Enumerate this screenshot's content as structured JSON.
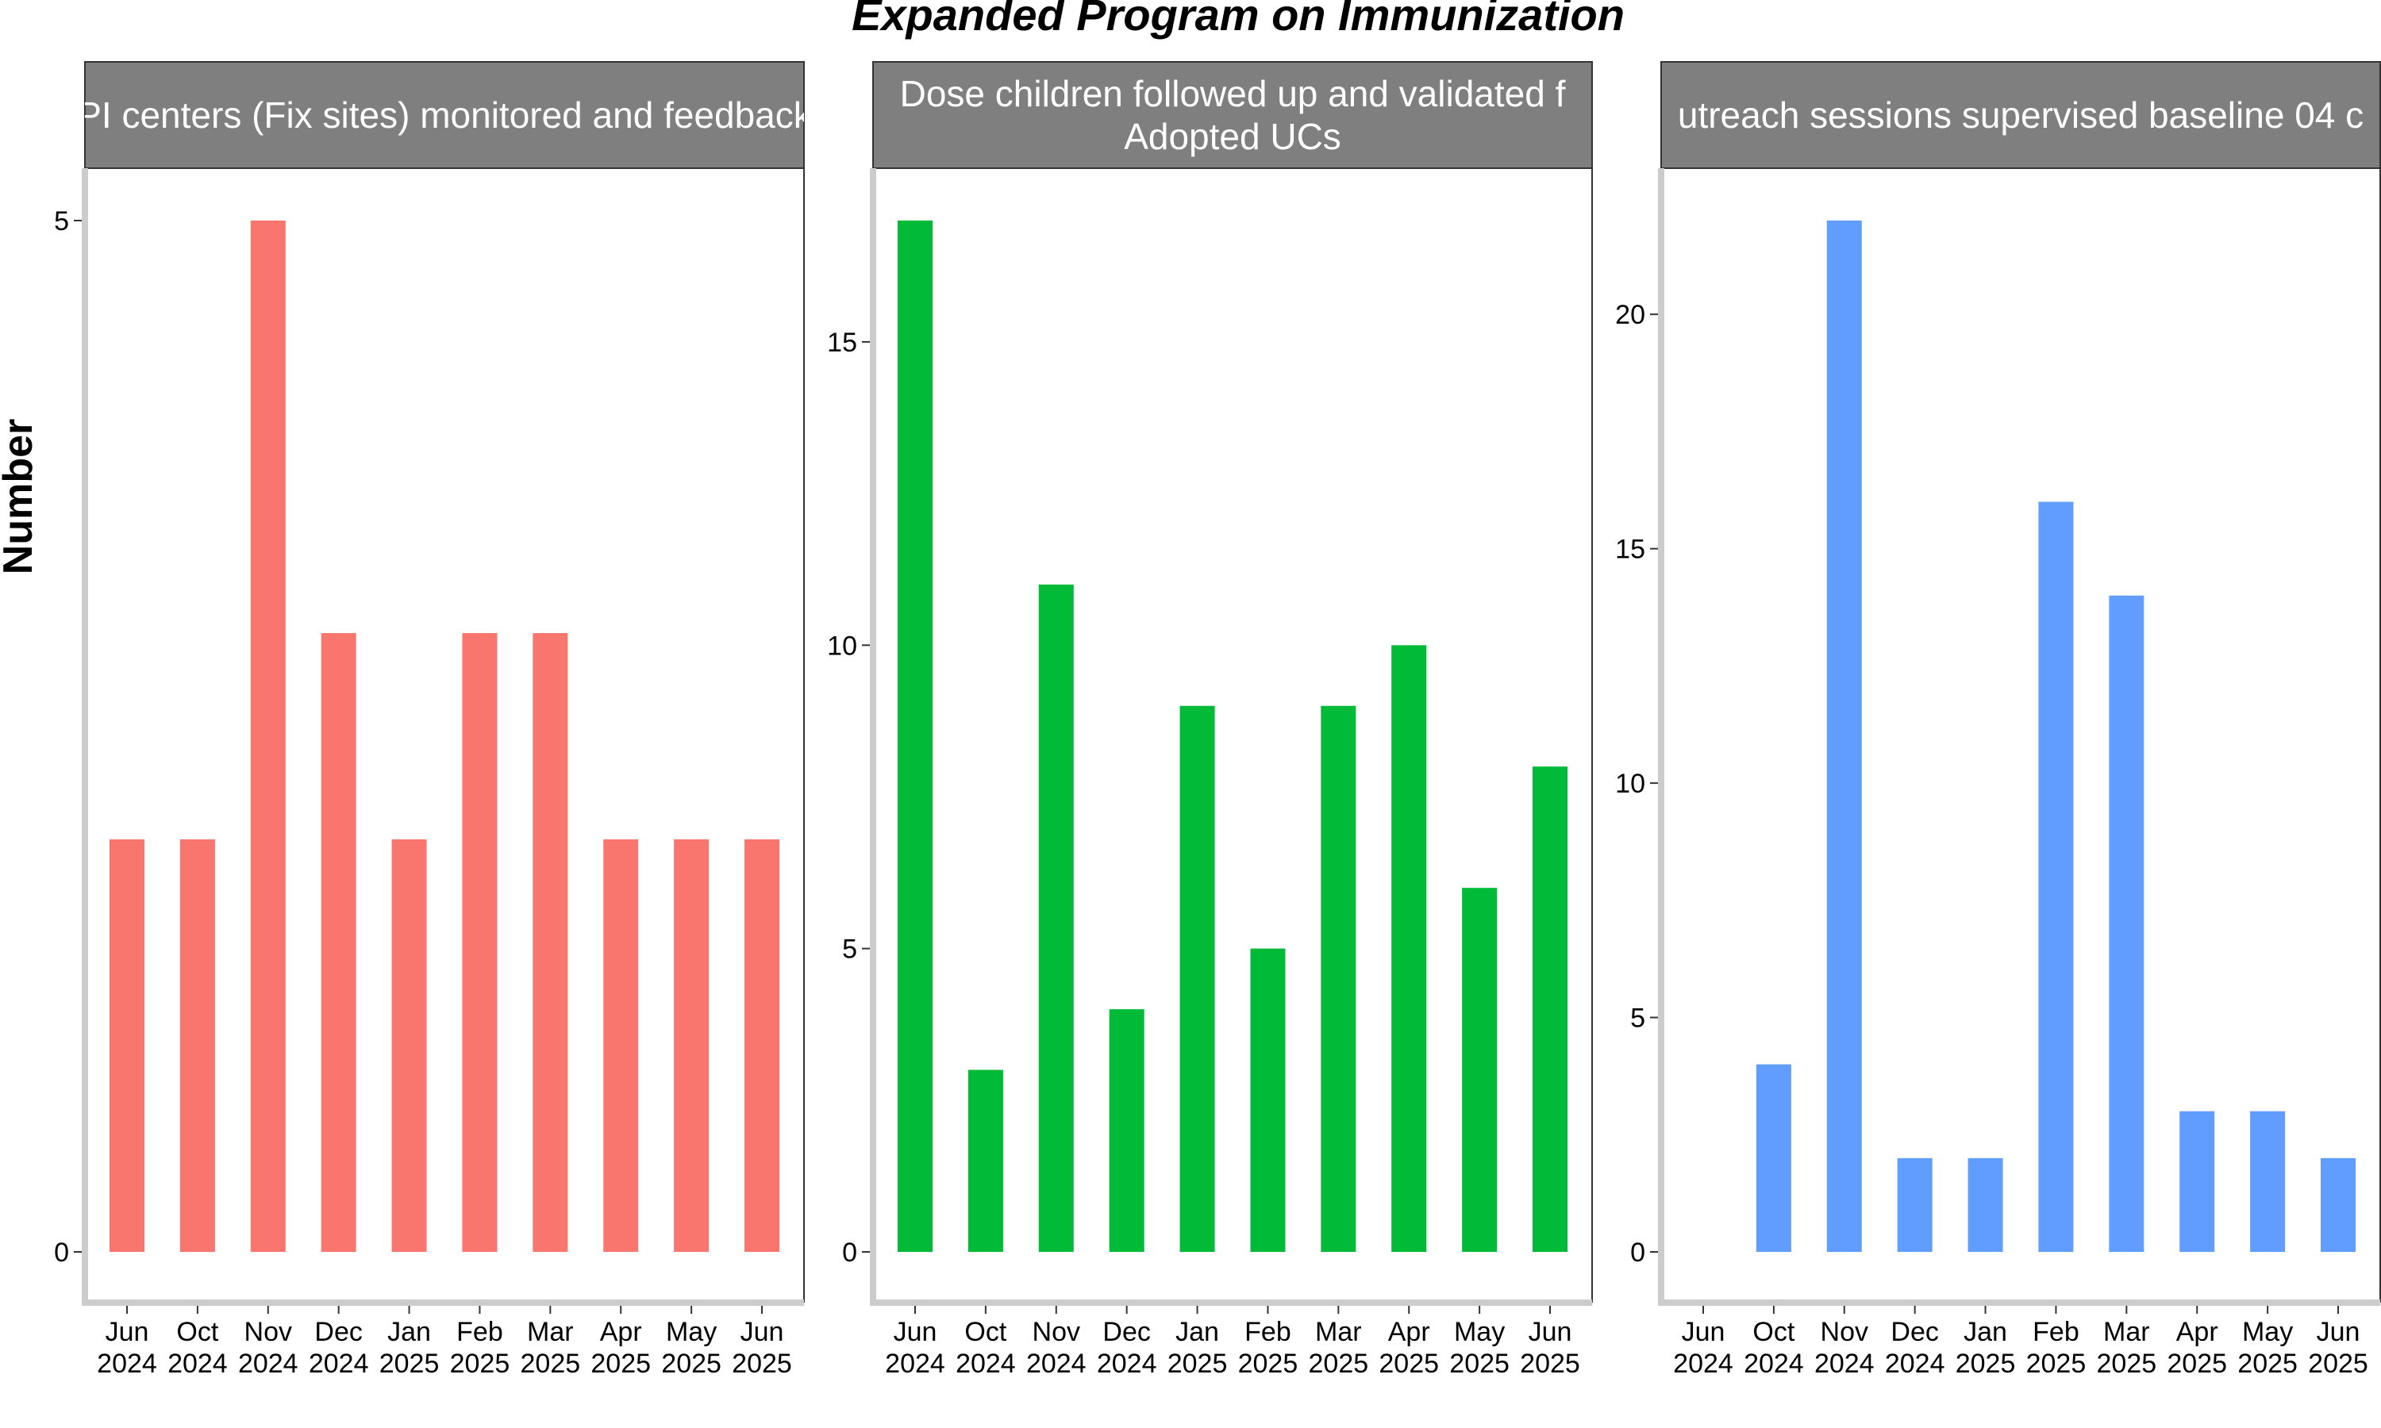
{
  "figure": {
    "title": "Expanded Program on Immunization",
    "ylabel": "Number"
  },
  "chart_data": [
    {
      "type": "bar",
      "title_lines": [
        "PI centers (Fix sites) monitored and feedback"
      ],
      "categories": [
        "Jun 2024",
        "Oct 2024",
        "Nov 2024",
        "Dec 2024",
        "Jan 2025",
        "Feb 2025",
        "Mar 2025",
        "Apr 2025",
        "May 2025",
        "Jun 2025"
      ],
      "values": [
        2,
        2,
        5,
        3,
        2,
        3,
        3,
        2,
        2,
        2
      ],
      "ylim": [
        0,
        5
      ],
      "yticks": [
        0,
        5
      ],
      "color": "#F8766D"
    },
    {
      "type": "bar",
      "title_lines": [
        "Dose children followed up and validated f",
        "Adopted UCs"
      ],
      "categories": [
        "Jun 2024",
        "Oct 2024",
        "Nov 2024",
        "Dec 2024",
        "Jan 2025",
        "Feb 2025",
        "Mar 2025",
        "Apr 2025",
        "May 2025",
        "Jun 2025"
      ],
      "values": [
        17,
        3,
        11,
        4,
        9,
        5,
        9,
        10,
        6,
        8
      ],
      "ylim": [
        0,
        17
      ],
      "yticks": [
        0,
        5,
        10,
        15
      ],
      "color": "#00BA38"
    },
    {
      "type": "bar",
      "title_lines": [
        "utreach sessions supervised baseline 04 c"
      ],
      "categories": [
        "Jun 2024",
        "Oct 2024",
        "Nov 2024",
        "Dec 2024",
        "Jan 2025",
        "Feb 2025",
        "Mar 2025",
        "Apr 2025",
        "May 2025",
        "Jun 2025"
      ],
      "values": [
        0,
        4,
        22,
        2,
        2,
        16,
        14,
        3,
        3,
        2
      ],
      "ylim": [
        0,
        22
      ],
      "yticks": [
        0,
        5,
        10,
        15,
        20
      ],
      "color": "#619CFF"
    }
  ]
}
